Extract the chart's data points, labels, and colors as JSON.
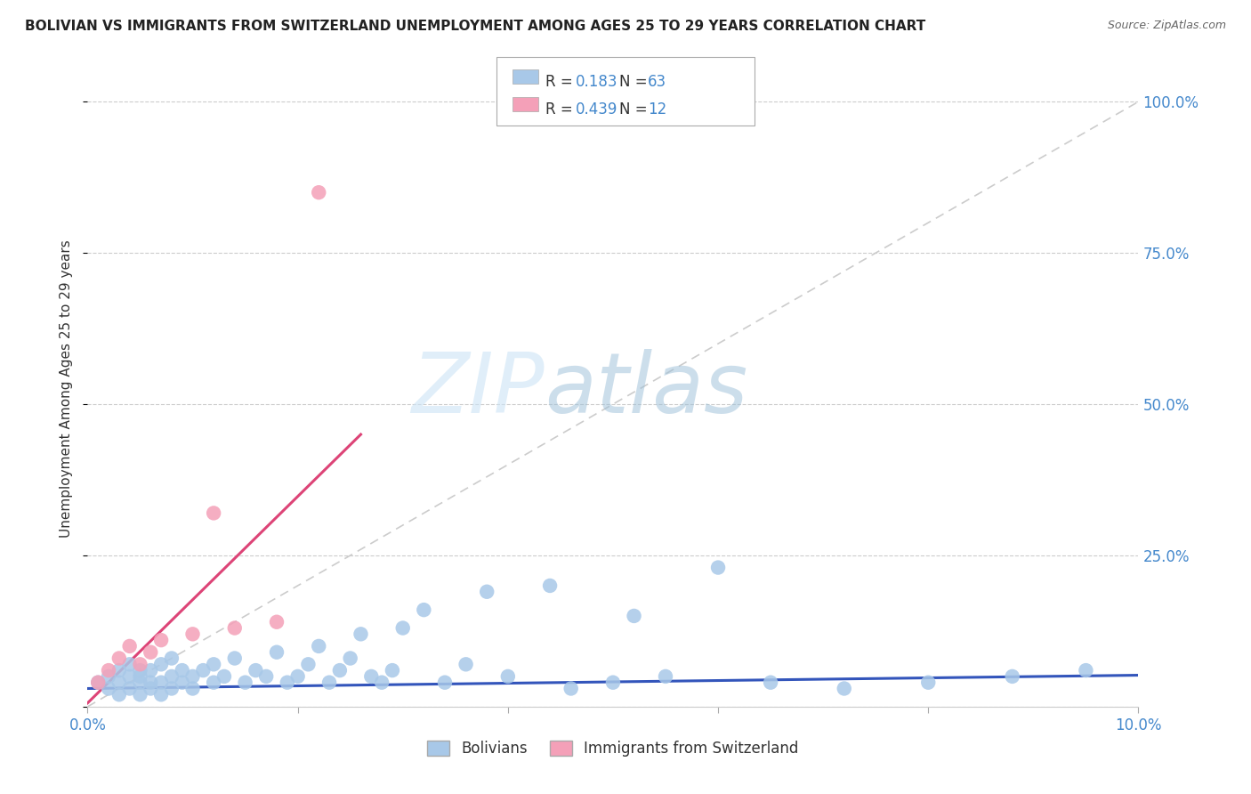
{
  "title": "BOLIVIAN VS IMMIGRANTS FROM SWITZERLAND UNEMPLOYMENT AMONG AGES 25 TO 29 YEARS CORRELATION CHART",
  "source": "Source: ZipAtlas.com",
  "ylabel": "Unemployment Among Ages 25 to 29 years",
  "xlim": [
    0.0,
    0.1
  ],
  "ylim": [
    0.0,
    1.05
  ],
  "xticks": [
    0.0,
    0.02,
    0.04,
    0.06,
    0.08,
    0.1
  ],
  "xticklabels": [
    "0.0%",
    "",
    "",
    "",
    "",
    "10.0%"
  ],
  "yticks": [
    0.0,
    0.25,
    0.5,
    0.75,
    1.0
  ],
  "yticklabels_right": [
    "",
    "25.0%",
    "50.0%",
    "75.0%",
    "100.0%"
  ],
  "blue_R": 0.183,
  "blue_N": 63,
  "pink_R": 0.439,
  "pink_N": 12,
  "blue_color": "#a8c8e8",
  "pink_color": "#f4a0b8",
  "blue_line_color": "#3355bb",
  "pink_line_color": "#dd4477",
  "diagonal_color": "#cccccc",
  "watermark_zip": "ZIP",
  "watermark_atlas": "atlas",
  "blue_scatter_x": [
    0.001,
    0.002,
    0.002,
    0.003,
    0.003,
    0.003,
    0.004,
    0.004,
    0.004,
    0.005,
    0.005,
    0.005,
    0.005,
    0.006,
    0.006,
    0.006,
    0.007,
    0.007,
    0.007,
    0.008,
    0.008,
    0.008,
    0.009,
    0.009,
    0.01,
    0.01,
    0.011,
    0.012,
    0.012,
    0.013,
    0.014,
    0.015,
    0.016,
    0.017,
    0.018,
    0.019,
    0.02,
    0.021,
    0.022,
    0.023,
    0.024,
    0.025,
    0.026,
    0.027,
    0.028,
    0.029,
    0.03,
    0.032,
    0.034,
    0.036,
    0.038,
    0.04,
    0.044,
    0.046,
    0.05,
    0.052,
    0.055,
    0.06,
    0.065,
    0.072,
    0.08,
    0.088,
    0.095
  ],
  "blue_scatter_y": [
    0.04,
    0.03,
    0.05,
    0.02,
    0.04,
    0.06,
    0.03,
    0.05,
    0.07,
    0.02,
    0.04,
    0.05,
    0.06,
    0.03,
    0.04,
    0.06,
    0.02,
    0.04,
    0.07,
    0.03,
    0.05,
    0.08,
    0.04,
    0.06,
    0.03,
    0.05,
    0.06,
    0.04,
    0.07,
    0.05,
    0.08,
    0.04,
    0.06,
    0.05,
    0.09,
    0.04,
    0.05,
    0.07,
    0.1,
    0.04,
    0.06,
    0.08,
    0.12,
    0.05,
    0.04,
    0.06,
    0.13,
    0.16,
    0.04,
    0.07,
    0.19,
    0.05,
    0.2,
    0.03,
    0.04,
    0.15,
    0.05,
    0.23,
    0.04,
    0.03,
    0.04,
    0.05,
    0.06
  ],
  "pink_scatter_x": [
    0.001,
    0.002,
    0.003,
    0.004,
    0.005,
    0.006,
    0.007,
    0.01,
    0.012,
    0.014,
    0.018,
    0.022
  ],
  "pink_scatter_y": [
    0.04,
    0.06,
    0.08,
    0.1,
    0.07,
    0.09,
    0.11,
    0.12,
    0.32,
    0.13,
    0.14,
    0.85
  ],
  "blue_trend_x": [
    0.0,
    0.1
  ],
  "blue_trend_y": [
    0.03,
    0.052
  ],
  "pink_trend_x": [
    0.0,
    0.026
  ],
  "pink_trend_y": [
    0.006,
    0.45
  ]
}
